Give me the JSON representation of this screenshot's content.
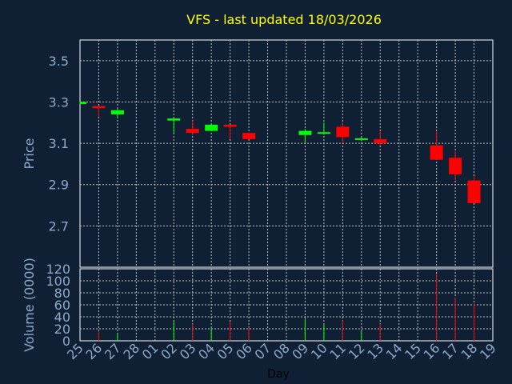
{
  "chart_data": {
    "type": "candlestick",
    "title": "VFS - last updated 18/03/2026",
    "xlabel": "Day",
    "price_ylabel": "Price",
    "volume_ylabel": "Volume (0000)",
    "price_ylim": [
      2.5,
      3.6
    ],
    "price_ticks": [
      "2.7",
      "2.9",
      "3.1",
      "3.3",
      "3.5"
    ],
    "volume_ylim": [
      0,
      120
    ],
    "volume_ticks": [
      "0",
      "20",
      "40",
      "60",
      "80",
      "100",
      "120"
    ],
    "x_ticks": [
      "25",
      "26",
      "27",
      "28",
      "01",
      "02",
      "03",
      "04",
      "05",
      "06",
      "07",
      "08",
      "09",
      "10",
      "11",
      "12",
      "13",
      "14",
      "15",
      "16",
      "17",
      "18",
      "19"
    ],
    "grid": true,
    "colors": {
      "up": "#00ff00",
      "down": "#ff0000",
      "background": "#0f2035",
      "grid": "#c0c0c0"
    },
    "candles": [
      {
        "day": "25",
        "open": 3.29,
        "high": 3.3,
        "low": 3.29,
        "close": 3.3,
        "volume": 0
      },
      {
        "day": "26",
        "open": 3.28,
        "high": 3.28,
        "low": 3.23,
        "close": 3.27,
        "volume": 15
      },
      {
        "day": "27",
        "open": 3.24,
        "high": 3.27,
        "low": 3.22,
        "close": 3.26,
        "volume": 13
      },
      {
        "day": "02",
        "open": 3.21,
        "high": 3.22,
        "low": 3.15,
        "close": 3.22,
        "volume": 32
      },
      {
        "day": "03",
        "open": 3.17,
        "high": 3.21,
        "low": 3.14,
        "close": 3.15,
        "volume": 28
      },
      {
        "day": "04",
        "open": 3.16,
        "high": 3.19,
        "low": 3.16,
        "close": 3.19,
        "volume": 22
      },
      {
        "day": "05",
        "open": 3.19,
        "high": 3.19,
        "low": 3.12,
        "close": 3.18,
        "volume": 32
      },
      {
        "day": "06",
        "open": 3.15,
        "high": 3.15,
        "low": 3.12,
        "close": 3.12,
        "volume": 22
      },
      {
        "day": "09",
        "open": 3.14,
        "high": 3.17,
        "low": 3.1,
        "close": 3.16,
        "volume": 37
      },
      {
        "day": "10",
        "open": 3.15,
        "high": 3.2,
        "low": 3.14,
        "close": 3.15,
        "volume": 29
      },
      {
        "day": "11",
        "open": 3.18,
        "high": 3.2,
        "low": 3.1,
        "close": 3.13,
        "volume": 34
      },
      {
        "day": "12",
        "open": 3.12,
        "high": 3.13,
        "low": 3.11,
        "close": 3.12,
        "volume": 17
      },
      {
        "day": "13",
        "open": 3.12,
        "high": 3.16,
        "low": 3.09,
        "close": 3.1,
        "volume": 28
      },
      {
        "day": "16",
        "open": 3.09,
        "high": 3.16,
        "low": 3.02,
        "close": 3.02,
        "volume": 112
      },
      {
        "day": "17",
        "open": 3.03,
        "high": 3.06,
        "low": 2.92,
        "close": 2.95,
        "volume": 72
      },
      {
        "day": "18",
        "open": 2.92,
        "high": 2.94,
        "low": 2.81,
        "close": 2.81,
        "volume": 62
      }
    ]
  }
}
